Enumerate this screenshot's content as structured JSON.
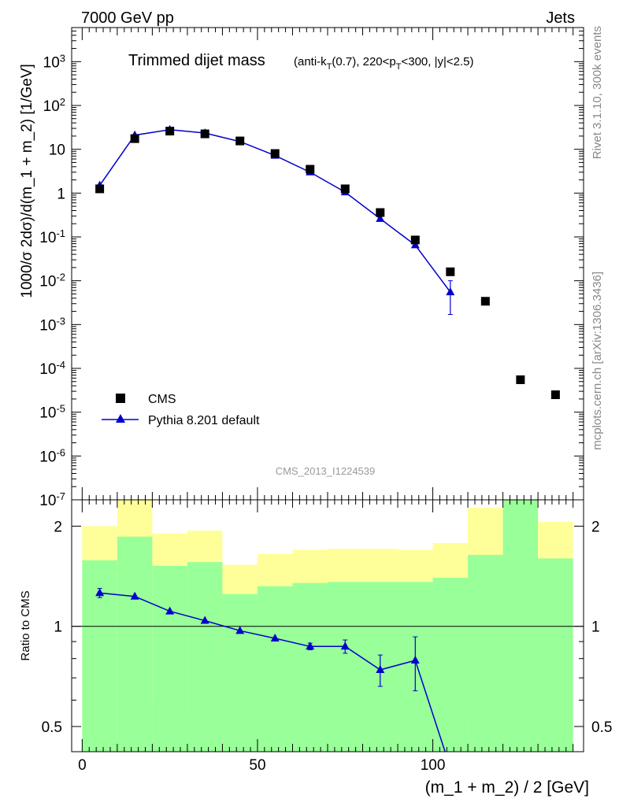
{
  "header": {
    "energy_label": "7000 GeV pp",
    "category_label": "Jets"
  },
  "side_text": {
    "rivet": "Rivet 3.1.10,  300k events",
    "mcplots": "mcplots.cern.ch [arXiv:1306.3436]"
  },
  "chart_data": [
    {
      "type": "scatter",
      "title_main": "Trimmed dijet mass",
      "title_sub": "(anti-k_T(0.7), 220<p_T<300, |y|<2.5)",
      "watermark": "CMS_2013_I1224539",
      "ylabel": "1000/σ 2dσ)/d(m_1 + m_2) [1/GeV]",
      "yscale": "log",
      "ylim": [
        1e-07,
        6000
      ],
      "xlim": [
        -3,
        143
      ],
      "legend": {
        "placement": "bottom-left"
      },
      "series": [
        {
          "name": "CMS",
          "color": "#000000",
          "marker": "square",
          "x": [
            5,
            15,
            25,
            35,
            45,
            55,
            65,
            75,
            85,
            95,
            105,
            115,
            125,
            135
          ],
          "y": [
            1.25,
            17.5,
            26,
            22.5,
            15.5,
            8.0,
            3.5,
            1.25,
            0.36,
            0.085,
            0.016,
            0.0034,
            5.5e-05,
            2.5e-05
          ]
        },
        {
          "name": "Pythia 8.201 default",
          "color": "#0000cc",
          "marker": "triangle",
          "x": [
            5,
            15,
            25,
            35,
            45,
            55,
            65,
            75,
            85,
            95,
            105
          ],
          "y": [
            1.5,
            21,
            28,
            23.5,
            15,
            7.2,
            3.0,
            1.05,
            0.26,
            0.065,
            0.0055
          ],
          "err_low": [
            0,
            0,
            0,
            0,
            0,
            0,
            0,
            0,
            0,
            0,
            0.0038
          ],
          "err_high": [
            0,
            0,
            0,
            0,
            0,
            0,
            0,
            0,
            0,
            0,
            0.0045
          ]
        }
      ],
      "xticks_major": [
        0,
        50,
        100
      ],
      "xticks_minor_step": 10
    },
    {
      "type": "scatter",
      "ylabel": "Ratio to CMS",
      "xlabel": "(m_1 + m_2) / 2 [GeV]",
      "yscale": "log",
      "ylim": [
        0.42,
        2.4
      ],
      "xlim": [
        -3,
        143
      ],
      "yticks": [
        0.5,
        1,
        2
      ],
      "reference_line": 1,
      "bands": {
        "bins": [
          [
            0,
            10
          ],
          [
            10,
            20
          ],
          [
            20,
            30
          ],
          [
            30,
            40
          ],
          [
            40,
            50
          ],
          [
            50,
            60
          ],
          [
            60,
            70
          ],
          [
            70,
            80
          ],
          [
            80,
            90
          ],
          [
            90,
            100
          ],
          [
            100,
            110
          ],
          [
            110,
            120
          ],
          [
            120,
            130
          ],
          [
            130,
            140
          ]
        ],
        "yellow": [
          [
            0.56,
            2.0
          ],
          [
            0.42,
            2.6
          ],
          [
            0.61,
            1.9
          ],
          [
            0.56,
            1.94
          ],
          [
            0.84,
            1.53
          ],
          [
            0.8,
            1.65
          ],
          [
            0.8,
            1.7
          ],
          [
            0.8,
            1.71
          ],
          [
            0.78,
            1.71
          ],
          [
            0.76,
            1.7
          ],
          [
            0.7,
            1.78
          ],
          [
            0.51,
            2.27
          ],
          [
            0.42,
            2.6
          ],
          [
            0.42,
            2.06
          ]
        ],
        "green": [
          [
            0.42,
            1.58
          ],
          [
            0.42,
            1.86
          ],
          [
            0.42,
            1.52
          ],
          [
            0.42,
            1.56
          ],
          [
            0.42,
            1.25
          ],
          [
            0.42,
            1.32
          ],
          [
            0.42,
            1.35
          ],
          [
            0.42,
            1.36
          ],
          [
            0.42,
            1.36
          ],
          [
            0.42,
            1.36
          ],
          [
            0.42,
            1.4
          ],
          [
            0.42,
            1.64
          ],
          [
            0.42,
            2.6
          ],
          [
            0.42,
            1.6
          ]
        ],
        "yellow_color": "#ffff99",
        "green_color": "#99ff99"
      },
      "series": [
        {
          "name": "Pythia 8.201 default",
          "color": "#0000cc",
          "x": [
            5,
            15,
            25,
            35,
            45,
            55,
            65,
            75,
            85,
            95
          ],
          "y": [
            1.26,
            1.23,
            1.11,
            1.04,
            0.97,
            0.92,
            0.87,
            0.87,
            0.74,
            0.79
          ],
          "err_low": [
            0.04,
            0,
            0,
            0,
            0,
            0,
            0.02,
            0.04,
            0.08,
            0.15
          ],
          "err_high": [
            0.04,
            0,
            0,
            0,
            0,
            0,
            0.02,
            0.04,
            0.08,
            0.14
          ],
          "tail_to": [
            103.5,
            0.42
          ]
        }
      ],
      "xticks_major": [
        0,
        50,
        100
      ],
      "xticks_minor_step": 10
    }
  ]
}
